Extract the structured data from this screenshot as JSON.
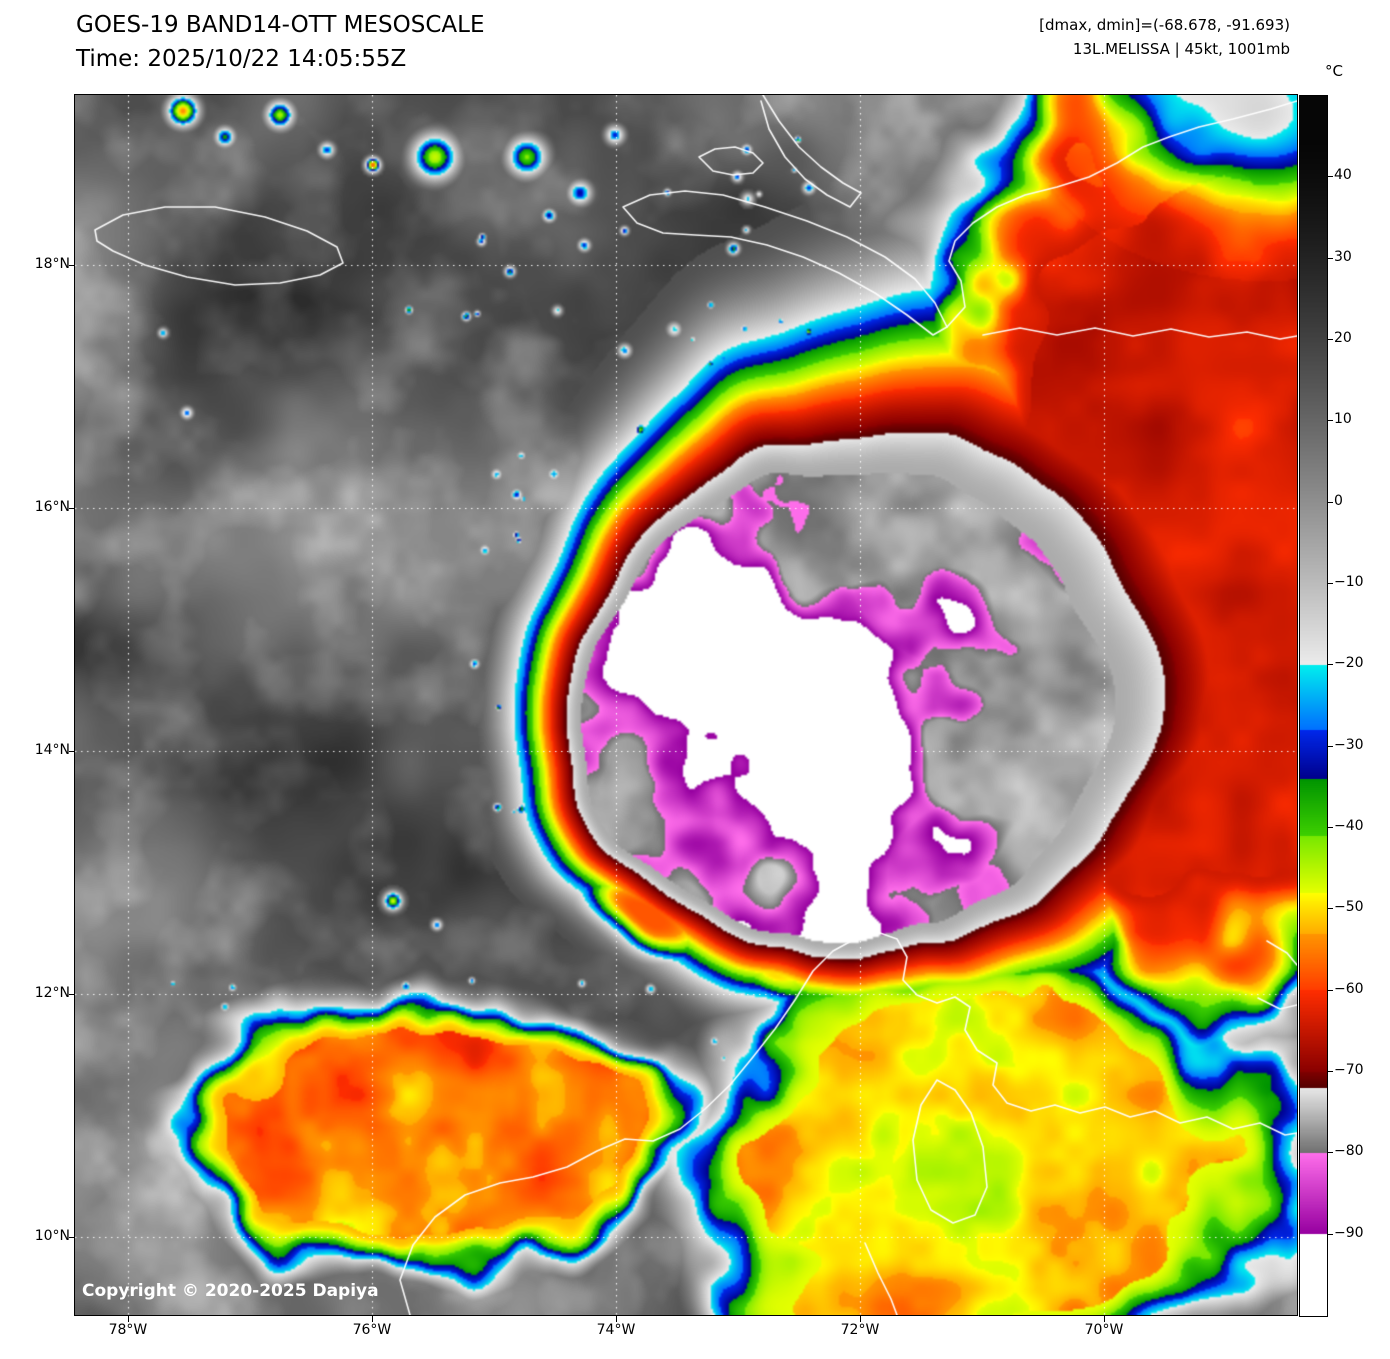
{
  "header": {
    "title": "GOES-19 BAND14-OTT MESOSCALE",
    "time_line": "Time: 2025/10/22 14:05:55Z",
    "dmax_dmin": "[dmax, dmin]=(-68.678, -91.693)",
    "storm_line": "13L.MELISSA | 45kt, 1001mb"
  },
  "colorbar": {
    "unit_label": "°C",
    "ticks": [
      {
        "value": 40,
        "label": "40"
      },
      {
        "value": 30,
        "label": "30"
      },
      {
        "value": 20,
        "label": "20"
      },
      {
        "value": 10,
        "label": "10"
      },
      {
        "value": 0,
        "label": "0"
      },
      {
        "value": -10,
        "label": "−10"
      },
      {
        "value": -20,
        "label": "−20"
      },
      {
        "value": -30,
        "label": "−30"
      },
      {
        "value": -40,
        "label": "−40"
      },
      {
        "value": -50,
        "label": "−50"
      },
      {
        "value": -60,
        "label": "−60"
      },
      {
        "value": -70,
        "label": "−70"
      },
      {
        "value": -80,
        "label": "−80"
      },
      {
        "value": -90,
        "label": "−90"
      }
    ]
  },
  "axes": {
    "lat_ticks": [
      {
        "value": 18,
        "label": "18°N"
      },
      {
        "value": 16,
        "label": "16°N"
      },
      {
        "value": 14,
        "label": "14°N"
      },
      {
        "value": 12,
        "label": "12°N"
      },
      {
        "value": 10,
        "label": "10°N"
      }
    ],
    "lon_ticks": [
      {
        "value": 78,
        "label": "78°W"
      },
      {
        "value": 76,
        "label": "76°W"
      },
      {
        "value": 74,
        "label": "74°W"
      },
      {
        "value": 72,
        "label": "72°W"
      },
      {
        "value": 70,
        "label": "70°W"
      }
    ]
  },
  "footer": {
    "copyright": "Copyright © 2020-2025 Dapiya"
  },
  "palette": {
    "page_background": "#ffffff",
    "grid_lines": "#ffffff",
    "coastlines": "#ffffff",
    "cold_ring_red": "#d40000",
    "overshoot_magenta": "#cc55cc"
  }
}
